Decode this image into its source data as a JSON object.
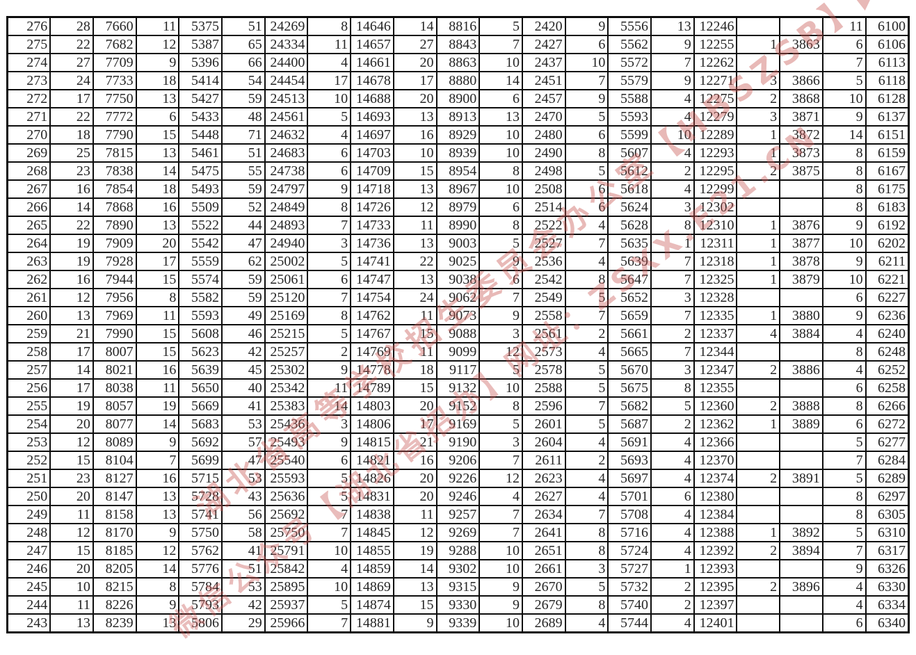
{
  "table": {
    "description": "Score one-by-one segment table: leading score column followed by ten (count, cumulative) column pairs; empty strings are blank cells in the screenshot",
    "columns": [
      "score",
      "count1",
      "cum1",
      "count2",
      "cum2",
      "count3",
      "cum3",
      "count4",
      "cum4",
      "count5",
      "cum5",
      "count6",
      "cum6",
      "count7",
      "cum7",
      "count8",
      "cum8",
      "count9",
      "cum9",
      "count10",
      "cum10"
    ],
    "rows": [
      [
        "276",
        "28",
        "7660",
        "11",
        "5375",
        "51",
        "24269",
        "8",
        "14646",
        "14",
        "8816",
        "5",
        "2420",
        "9",
        "5556",
        "13",
        "12246",
        "",
        "",
        "11",
        "6100"
      ],
      [
        "275",
        "22",
        "7682",
        "12",
        "5387",
        "65",
        "24334",
        "11",
        "14657",
        "27",
        "8843",
        "7",
        "2427",
        "6",
        "5562",
        "9",
        "12255",
        "1",
        "3863",
        "6",
        "6106"
      ],
      [
        "274",
        "27",
        "7709",
        "9",
        "5396",
        "66",
        "24400",
        "4",
        "14661",
        "20",
        "8863",
        "10",
        "2437",
        "10",
        "5572",
        "7",
        "12262",
        "",
        "",
        "7",
        "6113"
      ],
      [
        "273",
        "24",
        "7733",
        "18",
        "5414",
        "54",
        "24454",
        "17",
        "14678",
        "17",
        "8880",
        "14",
        "2451",
        "7",
        "5579",
        "9",
        "12271",
        "3",
        "3866",
        "5",
        "6118"
      ],
      [
        "272",
        "17",
        "7750",
        "13",
        "5427",
        "59",
        "24513",
        "10",
        "14688",
        "20",
        "8900",
        "6",
        "2457",
        "9",
        "5588",
        "4",
        "12275",
        "2",
        "3868",
        "10",
        "6128"
      ],
      [
        "271",
        "22",
        "7772",
        "6",
        "5433",
        "48",
        "24561",
        "5",
        "14693",
        "13",
        "8913",
        "13",
        "2470",
        "5",
        "5593",
        "4",
        "12279",
        "3",
        "3871",
        "9",
        "6137"
      ],
      [
        "270",
        "18",
        "7790",
        "15",
        "5448",
        "71",
        "24632",
        "4",
        "14697",
        "16",
        "8929",
        "10",
        "2480",
        "6",
        "5599",
        "10",
        "12289",
        "1",
        "3872",
        "14",
        "6151"
      ],
      [
        "269",
        "25",
        "7815",
        "13",
        "5461",
        "51",
        "24683",
        "6",
        "14703",
        "10",
        "8939",
        "10",
        "2490",
        "8",
        "5607",
        "4",
        "12293",
        "1",
        "3873",
        "8",
        "6159"
      ],
      [
        "268",
        "23",
        "7838",
        "14",
        "5475",
        "55",
        "24738",
        "6",
        "14709",
        "15",
        "8954",
        "8",
        "2498",
        "5",
        "5612",
        "2",
        "12295",
        "2",
        "3875",
        "8",
        "6167"
      ],
      [
        "267",
        "16",
        "7854",
        "18",
        "5493",
        "59",
        "24797",
        "9",
        "14718",
        "13",
        "8967",
        "10",
        "2508",
        "6",
        "5618",
        "4",
        "12299",
        "",
        "",
        "8",
        "6175"
      ],
      [
        "266",
        "14",
        "7868",
        "16",
        "5509",
        "52",
        "24849",
        "8",
        "14726",
        "12",
        "8979",
        "6",
        "2514",
        "6",
        "5624",
        "3",
        "12302",
        "",
        "",
        "8",
        "6183"
      ],
      [
        "265",
        "22",
        "7890",
        "13",
        "5522",
        "44",
        "24893",
        "7",
        "14733",
        "11",
        "8990",
        "8",
        "2522",
        "4",
        "5628",
        "8",
        "12310",
        "1",
        "3876",
        "9",
        "6192"
      ],
      [
        "264",
        "19",
        "7909",
        "20",
        "5542",
        "47",
        "24940",
        "3",
        "14736",
        "13",
        "9003",
        "5",
        "2527",
        "7",
        "5635",
        "1",
        "12311",
        "1",
        "3877",
        "10",
        "6202"
      ],
      [
        "263",
        "19",
        "7928",
        "17",
        "5559",
        "62",
        "25002",
        "5",
        "14741",
        "22",
        "9025",
        "9",
        "2536",
        "4",
        "5639",
        "7",
        "12318",
        "1",
        "3878",
        "9",
        "6211"
      ],
      [
        "262",
        "16",
        "7944",
        "15",
        "5574",
        "59",
        "25061",
        "6",
        "14747",
        "13",
        "9038",
        "6",
        "2542",
        "8",
        "5647",
        "7",
        "12325",
        "1",
        "3879",
        "10",
        "6221"
      ],
      [
        "261",
        "12",
        "7956",
        "8",
        "5582",
        "59",
        "25120",
        "7",
        "14754",
        "24",
        "9062",
        "7",
        "2549",
        "5",
        "5652",
        "3",
        "12328",
        "",
        "",
        "6",
        "6227"
      ],
      [
        "260",
        "13",
        "7969",
        "11",
        "5593",
        "49",
        "25169",
        "8",
        "14762",
        "11",
        "9073",
        "9",
        "2558",
        "7",
        "5659",
        "7",
        "12335",
        "1",
        "3880",
        "9",
        "6236"
      ],
      [
        "259",
        "21",
        "7990",
        "15",
        "5608",
        "46",
        "25215",
        "5",
        "14767",
        "15",
        "9088",
        "3",
        "2561",
        "2",
        "5661",
        "2",
        "12337",
        "4",
        "3884",
        "4",
        "6240"
      ],
      [
        "258",
        "17",
        "8007",
        "15",
        "5623",
        "42",
        "25257",
        "2",
        "14769",
        "11",
        "9099",
        "12",
        "2573",
        "4",
        "5665",
        "7",
        "12344",
        "",
        "",
        "8",
        "6248"
      ],
      [
        "257",
        "14",
        "8021",
        "16",
        "5639",
        "45",
        "25302",
        "9",
        "14778",
        "18",
        "9117",
        "5",
        "2578",
        "5",
        "5670",
        "3",
        "12347",
        "2",
        "3886",
        "4",
        "6252"
      ],
      [
        "256",
        "17",
        "8038",
        "11",
        "5650",
        "40",
        "25342",
        "11",
        "14789",
        "15",
        "9132",
        "10",
        "2588",
        "5",
        "5675",
        "8",
        "12355",
        "",
        "",
        "6",
        "6258"
      ],
      [
        "255",
        "19",
        "8057",
        "19",
        "5669",
        "41",
        "25383",
        "14",
        "14803",
        "20",
        "9152",
        "8",
        "2596",
        "7",
        "5682",
        "5",
        "12360",
        "2",
        "3888",
        "8",
        "6266"
      ],
      [
        "254",
        "20",
        "8077",
        "14",
        "5683",
        "53",
        "25436",
        "3",
        "14806",
        "17",
        "9169",
        "5",
        "2601",
        "5",
        "5687",
        "2",
        "12362",
        "1",
        "3889",
        "6",
        "6272"
      ],
      [
        "253",
        "12",
        "8089",
        "9",
        "5692",
        "57",
        "25493",
        "9",
        "14815",
        "21",
        "9190",
        "3",
        "2604",
        "4",
        "5691",
        "4",
        "12366",
        "",
        "",
        "5",
        "6277"
      ],
      [
        "252",
        "15",
        "8104",
        "7",
        "5699",
        "47",
        "25540",
        "6",
        "14821",
        "16",
        "9206",
        "7",
        "2611",
        "2",
        "5693",
        "4",
        "12370",
        "",
        "",
        "7",
        "6284"
      ],
      [
        "251",
        "23",
        "8127",
        "16",
        "5715",
        "53",
        "25593",
        "5",
        "14826",
        "20",
        "9226",
        "12",
        "2623",
        "4",
        "5697",
        "4",
        "12374",
        "2",
        "3891",
        "5",
        "6289"
      ],
      [
        "250",
        "20",
        "8147",
        "13",
        "5728",
        "43",
        "25636",
        "5",
        "14831",
        "20",
        "9246",
        "4",
        "2627",
        "4",
        "5701",
        "6",
        "12380",
        "",
        "",
        "8",
        "6297"
      ],
      [
        "249",
        "11",
        "8158",
        "13",
        "5741",
        "56",
        "25692",
        "7",
        "14838",
        "11",
        "9257",
        "7",
        "2634",
        "7",
        "5708",
        "4",
        "12384",
        "",
        "",
        "8",
        "6305"
      ],
      [
        "248",
        "12",
        "8170",
        "9",
        "5750",
        "58",
        "25750",
        "7",
        "14845",
        "12",
        "9269",
        "7",
        "2641",
        "8",
        "5716",
        "4",
        "12388",
        "1",
        "3892",
        "5",
        "6310"
      ],
      [
        "247",
        "15",
        "8185",
        "12",
        "5762",
        "41",
        "25791",
        "10",
        "14855",
        "19",
        "9288",
        "10",
        "2651",
        "8",
        "5724",
        "4",
        "12392",
        "2",
        "3894",
        "7",
        "6317"
      ],
      [
        "246",
        "20",
        "8205",
        "14",
        "5776",
        "51",
        "25842",
        "4",
        "14859",
        "14",
        "9302",
        "10",
        "2661",
        "3",
        "5727",
        "1",
        "12393",
        "",
        "",
        "9",
        "6326"
      ],
      [
        "245",
        "10",
        "8215",
        "8",
        "5784",
        "53",
        "25895",
        "10",
        "14869",
        "13",
        "9315",
        "9",
        "2670",
        "5",
        "5732",
        "2",
        "12395",
        "2",
        "3896",
        "4",
        "6330"
      ],
      [
        "244",
        "11",
        "8226",
        "9",
        "5793",
        "42",
        "25937",
        "5",
        "14874",
        "15",
        "9330",
        "9",
        "2679",
        "8",
        "5740",
        "2",
        "12397",
        "",
        "",
        "4",
        "6334"
      ],
      [
        "243",
        "13",
        "8239",
        "13",
        "5806",
        "29",
        "25966",
        "7",
        "14881",
        "9",
        "9339",
        "10",
        "2689",
        "4",
        "5744",
        "4",
        "12401",
        "",
        "",
        "6",
        "6340"
      ]
    ]
  },
  "watermark": {
    "color": "#c75854",
    "line1": "湖北省高等学校招生委员会办公室【HBSZSB】▶",
    "line2": "微信公众号【湖北省招办】网址：ZSXX.E21.CN"
  }
}
